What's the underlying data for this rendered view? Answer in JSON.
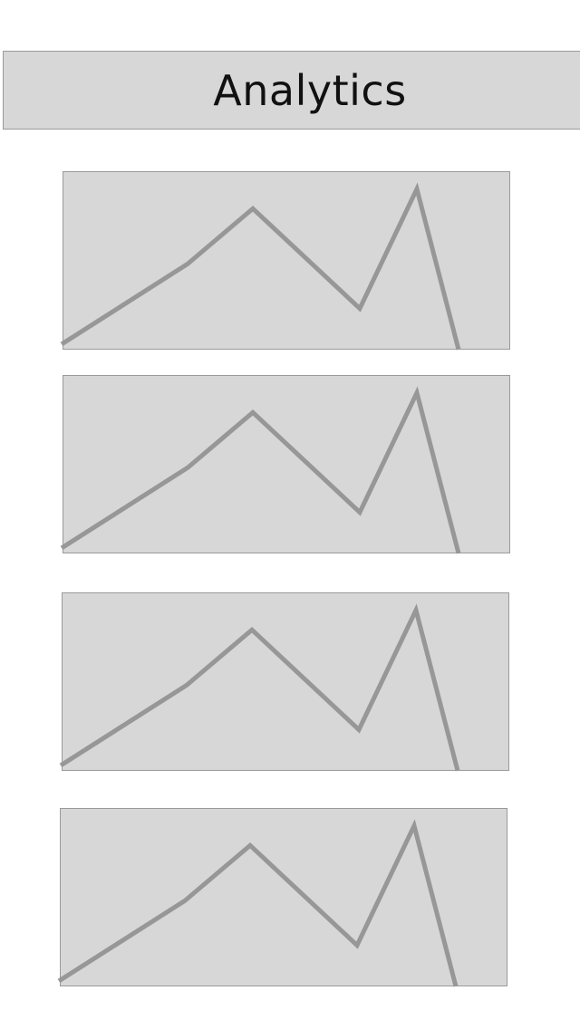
{
  "header": {
    "title": "Analytics"
  },
  "colors": {
    "panel_background": "#d7d7d7",
    "panel_border": "#9a9a9a",
    "line": "#979797"
  },
  "chart_data": [
    {
      "type": "line",
      "x": [
        0,
        1,
        2,
        3,
        4,
        5
      ],
      "values": [
        0,
        45,
        76,
        20,
        87,
        -3
      ]
    },
    {
      "type": "line",
      "x": [
        0,
        1,
        2,
        3,
        4,
        5
      ],
      "values": [
        0,
        45,
        76,
        20,
        87,
        -3
      ]
    },
    {
      "type": "line",
      "x": [
        0,
        1,
        2,
        3,
        4,
        5
      ],
      "values": [
        0,
        45,
        76,
        20,
        87,
        -3
      ]
    },
    {
      "type": "line",
      "x": [
        0,
        1,
        2,
        3,
        4,
        5
      ],
      "values": [
        0,
        45,
        76,
        20,
        87,
        -3
      ]
    }
  ]
}
